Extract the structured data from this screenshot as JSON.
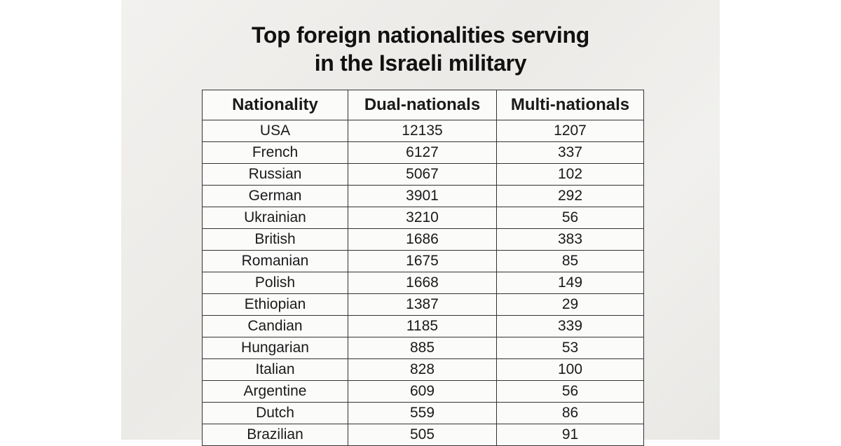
{
  "title": [
    "Top foreign nationalities serving",
    "in the Israeli military"
  ],
  "table": {
    "columns": [
      "Nationality",
      "Dual-nationals",
      "Multi-nationals"
    ],
    "rows": [
      [
        "USA",
        "12135",
        "1207"
      ],
      [
        "French",
        "6127",
        "337"
      ],
      [
        "Russian",
        "5067",
        "102"
      ],
      [
        "German",
        "3901",
        "292"
      ],
      [
        "Ukrainian",
        "3210",
        "56"
      ],
      [
        "British",
        "1686",
        "383"
      ],
      [
        "Romanian",
        "1675",
        "85"
      ],
      [
        "Polish",
        "1668",
        "149"
      ],
      [
        "Ethiopian",
        "1387",
        "29"
      ],
      [
        "Candian",
        "1185",
        "339"
      ],
      [
        "Hungarian",
        "885",
        "53"
      ],
      [
        "Italian",
        "828",
        "100"
      ],
      [
        "Argentine",
        "609",
        "56"
      ],
      [
        "Dutch",
        "559",
        "86"
      ],
      [
        "Brazilian",
        "505",
        "91"
      ]
    ]
  }
}
